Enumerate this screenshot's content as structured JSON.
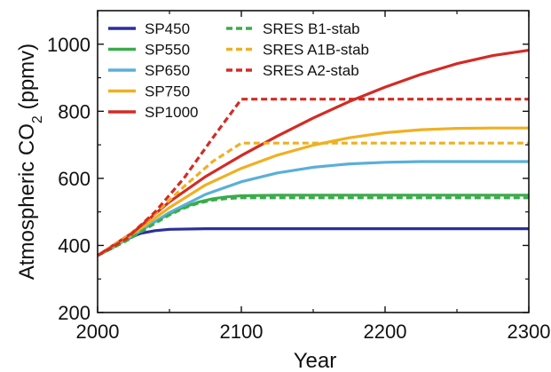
{
  "chart_data": {
    "type": "line",
    "xlabel": "Year",
    "ylabel": "Atmospheric CO",
    "ylabel_subscript": "2",
    "ylabel_unit": " (ppmv)",
    "xlim": [
      2000,
      2300
    ],
    "ylim": [
      200,
      1100
    ],
    "xticks": [
      2000,
      2100,
      2200,
      2300
    ],
    "yticks": [
      200,
      400,
      600,
      800,
      1000
    ],
    "grid": false,
    "legend": "top-left, two columns",
    "series": [
      {
        "name": "SP450",
        "color": "#2b2f9c",
        "dash": "solid",
        "x": [
          2000,
          2010,
          2020,
          2030,
          2040,
          2050,
          2075,
          2100,
          2200,
          2300
        ],
        "y": [
          370,
          393,
          418,
          436,
          444,
          448,
          450,
          450,
          450,
          450
        ]
      },
      {
        "name": "SP550",
        "color": "#3aac4a",
        "dash": "solid",
        "x": [
          2000,
          2010,
          2020,
          2030,
          2040,
          2050,
          2060,
          2070,
          2080,
          2090,
          2100,
          2125,
          2150,
          2200,
          2300
        ],
        "y": [
          370,
          392,
          418,
          445,
          471,
          494,
          514,
          529,
          539,
          545,
          548,
          550,
          550,
          550,
          550
        ]
      },
      {
        "name": "SP650",
        "color": "#5aafd9",
        "dash": "solid",
        "x": [
          2000,
          2025,
          2050,
          2075,
          2100,
          2125,
          2150,
          2175,
          2200,
          2225,
          2250,
          2300
        ],
        "y": [
          370,
          430,
          498,
          552,
          590,
          616,
          633,
          643,
          648,
          650,
          650,
          650
        ]
      },
      {
        "name": "SP750",
        "color": "#efb022",
        "dash": "solid",
        "x": [
          2000,
          2025,
          2050,
          2075,
          2100,
          2125,
          2150,
          2175,
          2200,
          2225,
          2250,
          2275,
          2300
        ],
        "y": [
          370,
          435,
          513,
          580,
          630,
          669,
          699,
          721,
          736,
          745,
          749,
          750,
          750
        ]
      },
      {
        "name": "SP1000",
        "color": "#d32b24",
        "dash": "solid",
        "x": [
          2000,
          2025,
          2050,
          2075,
          2100,
          2125,
          2150,
          2175,
          2200,
          2225,
          2250,
          2275,
          2300
        ],
        "y": [
          370,
          440,
          530,
          605,
          668,
          726,
          780,
          829,
          872,
          910,
          942,
          966,
          982
        ]
      },
      {
        "name": "SRES B1-stab",
        "color": "#3aac4a",
        "dash": "dashed",
        "x": [
          2000,
          2010,
          2020,
          2030,
          2040,
          2050,
          2060,
          2070,
          2080,
          2090,
          2100,
          2300
        ],
        "y": [
          370,
          391,
          414,
          440,
          466,
          491,
          511,
          526,
          535,
          540,
          542,
          542
        ]
      },
      {
        "name": "SRES A1B-stab",
        "color": "#efb022",
        "dash": "dashed",
        "x": [
          2000,
          2020,
          2040,
          2060,
          2080,
          2100,
          2300
        ],
        "y": [
          370,
          425,
          495,
          575,
          650,
          705,
          705
        ]
      },
      {
        "name": "SRES A2-stab",
        "color": "#d32b24",
        "dash": "dashed",
        "x": [
          2000,
          2020,
          2040,
          2060,
          2080,
          2100,
          2300
        ],
        "y": [
          370,
          420,
          500,
          600,
          720,
          836,
          836
        ]
      }
    ]
  }
}
